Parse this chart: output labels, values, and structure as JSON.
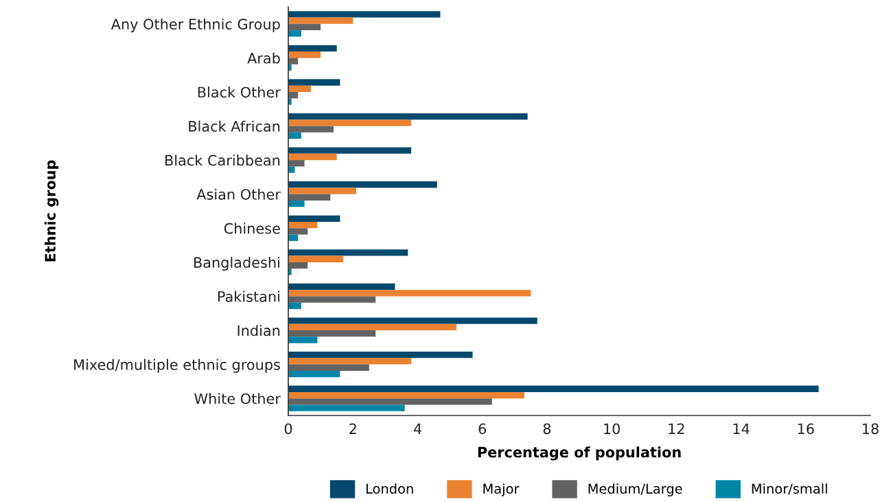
{
  "chart_data": {
    "type": "bar",
    "orientation": "horizontal",
    "xlabel": "Percentage of population",
    "ylabel": "Ethnic group",
    "categories": [
      "Any Other Ethnic Group",
      "Arab",
      "Black Other",
      "Black African",
      "Black Caribbean",
      "Asian Other",
      "Chinese",
      "Bangladeshi",
      "Pakistani",
      "Indian",
      "Mixed/multiple ethnic groups",
      "White Other"
    ],
    "series": [
      {
        "name": "London",
        "color": "#05496d",
        "values": [
          4.7,
          1.5,
          1.6,
          7.4,
          3.8,
          4.6,
          1.6,
          3.7,
          3.3,
          7.7,
          5.7,
          16.4
        ]
      },
      {
        "name": "Major",
        "color": "#ea8232",
        "values": [
          2.0,
          1.0,
          0.7,
          3.8,
          1.5,
          2.1,
          0.9,
          1.7,
          7.5,
          5.2,
          3.8,
          7.3
        ]
      },
      {
        "name": "Medium/Large",
        "color": "#636363",
        "values": [
          1.0,
          0.3,
          0.3,
          1.4,
          0.5,
          1.3,
          0.6,
          0.6,
          2.7,
          2.7,
          2.5,
          6.3
        ]
      },
      {
        "name": "Minor/small",
        "color": "#0085a6",
        "values": [
          0.4,
          0.1,
          0.1,
          0.4,
          0.2,
          0.5,
          0.3,
          0.1,
          0.4,
          0.9,
          1.6,
          3.6
        ]
      }
    ],
    "xlim": [
      0,
      18
    ],
    "xticks": [
      0,
      2,
      4,
      6,
      8,
      10,
      12,
      14,
      16,
      18
    ],
    "grid": false,
    "legend": "bottom"
  }
}
